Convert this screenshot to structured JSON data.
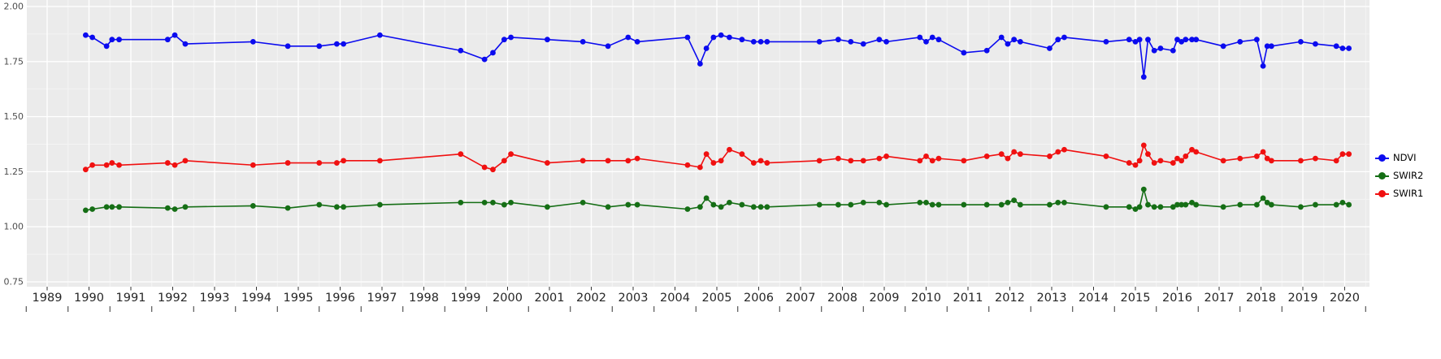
{
  "style": {
    "panel_bg": "#EBEBEB",
    "grid_major": "#FFFFFF",
    "grid_minor": "#F4F4F4",
    "axis_text_color": "#4D4D4D",
    "x_label_color": "#262626",
    "tick_color": "#333333"
  },
  "chart_data": {
    "type": "line",
    "title": "",
    "xlabel": "",
    "ylabel": "",
    "grid": "on",
    "legend_position": "right",
    "xlim": [
      1988.5,
      2020.6
    ],
    "ylim": [
      0.75,
      2.0
    ],
    "x_ticks": [
      1989,
      1990,
      1991,
      1992,
      1993,
      1994,
      1995,
      1996,
      1997,
      1998,
      1999,
      2000,
      2001,
      2002,
      2003,
      2004,
      2005,
      2006,
      2007,
      2008,
      2009,
      2010,
      2011,
      2012,
      2013,
      2014,
      2015,
      2016,
      2017,
      2018,
      2019,
      2020
    ],
    "y_ticks": [
      0.75,
      1.0,
      1.25,
      1.5,
      1.75,
      2.0
    ],
    "y_tick_labels": [
      "0.75",
      "1.00",
      "1.25",
      "1.50",
      "1.75",
      "2.00"
    ],
    "x": [
      1989.92,
      1990.08,
      1990.42,
      1990.55,
      1990.72,
      1991.88,
      1992.05,
      1992.3,
      1993.92,
      1994.75,
      1995.5,
      1995.92,
      1996.08,
      1996.95,
      1998.88,
      1999.45,
      1999.65,
      1999.92,
      2000.08,
      2000.95,
      2001.8,
      2002.4,
      2002.88,
      2003.1,
      2004.3,
      2004.6,
      2004.75,
      2004.92,
      2005.1,
      2005.3,
      2005.6,
      2005.88,
      2006.05,
      2006.2,
      2007.45,
      2007.9,
      2008.2,
      2008.5,
      2008.88,
      2009.05,
      2009.85,
      2010.0,
      2010.15,
      2010.3,
      2010.9,
      2011.45,
      2011.8,
      2011.95,
      2012.1,
      2012.25,
      2012.95,
      2013.15,
      2013.3,
      2014.3,
      2014.85,
      2015.0,
      2015.1,
      2015.2,
      2015.3,
      2015.45,
      2015.6,
      2015.9,
      2016.0,
      2016.1,
      2016.2,
      2016.35,
      2016.45,
      2017.1,
      2017.5,
      2017.9,
      2018.05,
      2018.15,
      2018.25,
      2018.95,
      2019.3,
      2019.8,
      2019.95,
      2020.1
    ],
    "series": [
      {
        "name": "NDVI",
        "color": "#0B0BEF",
        "values": [
          1.87,
          1.86,
          1.82,
          1.85,
          1.85,
          1.85,
          1.87,
          1.83,
          1.84,
          1.82,
          1.82,
          1.83,
          1.83,
          1.87,
          1.8,
          1.76,
          1.79,
          1.85,
          1.86,
          1.85,
          1.84,
          1.82,
          1.86,
          1.84,
          1.86,
          1.74,
          1.81,
          1.86,
          1.87,
          1.86,
          1.85,
          1.84,
          1.84,
          1.84,
          1.84,
          1.85,
          1.84,
          1.83,
          1.85,
          1.84,
          1.86,
          1.84,
          1.86,
          1.85,
          1.79,
          1.8,
          1.86,
          1.83,
          1.85,
          1.84,
          1.81,
          1.85,
          1.86,
          1.84,
          1.85,
          1.84,
          1.85,
          1.68,
          1.85,
          1.8,
          1.81,
          1.8,
          1.85,
          1.84,
          1.85,
          1.85,
          1.85,
          1.82,
          1.84,
          1.85,
          1.73,
          1.82,
          1.82,
          1.84,
          1.83,
          1.82,
          1.81,
          1.81
        ]
      },
      {
        "name": "SWIR2",
        "color": "#156E15",
        "values": [
          1.075,
          1.08,
          1.09,
          1.09,
          1.09,
          1.085,
          1.08,
          1.09,
          1.095,
          1.085,
          1.1,
          1.09,
          1.09,
          1.1,
          1.11,
          1.11,
          1.11,
          1.1,
          1.11,
          1.09,
          1.11,
          1.09,
          1.1,
          1.1,
          1.08,
          1.09,
          1.13,
          1.1,
          1.09,
          1.11,
          1.1,
          1.09,
          1.09,
          1.09,
          1.1,
          1.1,
          1.1,
          1.11,
          1.11,
          1.1,
          1.11,
          1.11,
          1.1,
          1.1,
          1.1,
          1.1,
          1.1,
          1.11,
          1.12,
          1.1,
          1.1,
          1.11,
          1.11,
          1.09,
          1.09,
          1.08,
          1.09,
          1.17,
          1.1,
          1.09,
          1.09,
          1.09,
          1.1,
          1.1,
          1.1,
          1.11,
          1.1,
          1.09,
          1.1,
          1.1,
          1.13,
          1.11,
          1.1,
          1.09,
          1.1,
          1.1,
          1.11,
          1.1
        ]
      },
      {
        "name": "SWIR1",
        "color": "#F01010",
        "values": [
          1.26,
          1.28,
          1.28,
          1.29,
          1.28,
          1.29,
          1.28,
          1.3,
          1.28,
          1.29,
          1.29,
          1.29,
          1.3,
          1.3,
          1.33,
          1.27,
          1.26,
          1.3,
          1.33,
          1.29,
          1.3,
          1.3,
          1.3,
          1.31,
          1.28,
          1.27,
          1.33,
          1.29,
          1.3,
          1.35,
          1.33,
          1.29,
          1.3,
          1.29,
          1.3,
          1.31,
          1.3,
          1.3,
          1.31,
          1.32,
          1.3,
          1.32,
          1.3,
          1.31,
          1.3,
          1.32,
          1.33,
          1.31,
          1.34,
          1.33,
          1.32,
          1.34,
          1.35,
          1.32,
          1.29,
          1.28,
          1.3,
          1.37,
          1.33,
          1.29,
          1.3,
          1.29,
          1.31,
          1.3,
          1.32,
          1.35,
          1.34,
          1.3,
          1.31,
          1.32,
          1.34,
          1.31,
          1.3,
          1.3,
          1.31,
          1.3,
          1.33,
          1.33
        ]
      }
    ],
    "legend": [
      {
        "label": "NDVI",
        "color": "#0B0BEF"
      },
      {
        "label": "SWIR2",
        "color": "#156E15"
      },
      {
        "label": "SWIR1",
        "color": "#F01010"
      }
    ]
  }
}
